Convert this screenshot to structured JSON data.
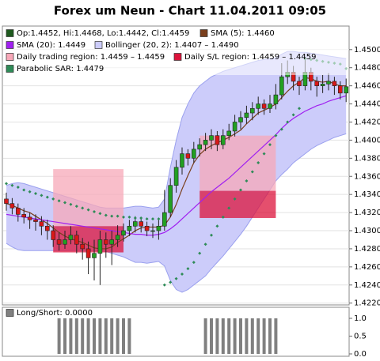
{
  "chart_data": [
    {
      "type": "candlestick",
      "title": "Forex um Neun - Chart 11.04.2011 09:05",
      "ylim": [
        1.4218,
        1.4526
      ],
      "yticks": [
        {
          "value": 1.422,
          "label": "1.4220"
        },
        {
          "value": 1.424,
          "label": "1.4240"
        },
        {
          "value": 1.426,
          "label": "1.4260"
        },
        {
          "value": 1.428,
          "label": "1.4280"
        },
        {
          "value": 1.43,
          "label": "1.4300"
        },
        {
          "value": 1.432,
          "label": "1.4320"
        },
        {
          "value": 1.434,
          "label": "1.4340"
        },
        {
          "value": 1.436,
          "label": "1.4360"
        },
        {
          "value": 1.438,
          "label": "1.4380"
        },
        {
          "value": 1.44,
          "label": "1.4400"
        },
        {
          "value": 1.442,
          "label": "1.4420"
        },
        {
          "value": 1.444,
          "label": "1.4440"
        },
        {
          "value": 1.446,
          "label": "1.4460"
        },
        {
          "value": 1.448,
          "label": "1.4480"
        },
        {
          "value": 1.45,
          "label": "1.4500"
        }
      ],
      "grid": true,
      "series": [
        {
          "name": "Op:1.4452, Hi:1.4468, Lo:1.4442, Cl:1.4459",
          "type": "candlestick",
          "color": "#1e5a1e",
          "up_color": "#22a022",
          "down_color": "#d81818",
          "open": [
            1.4335,
            1.433,
            1.4325,
            1.4318,
            1.4315,
            1.4312,
            1.431,
            1.4305,
            1.43,
            1.429,
            1.4285,
            1.429,
            1.4295,
            1.4285,
            1.428,
            1.427,
            1.4275,
            1.429,
            1.4285,
            1.429,
            1.4295,
            1.43,
            1.4305,
            1.431,
            1.4305,
            1.43,
            1.43,
            1.4305,
            1.432,
            1.435,
            1.437,
            1.4385,
            1.438,
            1.439,
            1.4395,
            1.44,
            1.4405,
            1.4395,
            1.4405,
            1.441,
            1.442,
            1.4425,
            1.443,
            1.4435,
            1.444,
            1.4435,
            1.444,
            1.445,
            1.447,
            1.4475,
            1.4465,
            1.446,
            1.4475,
            1.4465,
            1.446,
            1.4462,
            1.4465,
            1.446,
            1.4452
          ],
          "high": [
            1.4342,
            1.4336,
            1.433,
            1.4325,
            1.432,
            1.4318,
            1.4316,
            1.4312,
            1.4306,
            1.4298,
            1.43,
            1.4305,
            1.43,
            1.4292,
            1.4288,
            1.429,
            1.43,
            1.4298,
            1.43,
            1.4306,
            1.4308,
            1.4312,
            1.4316,
            1.4314,
            1.431,
            1.4308,
            1.4312,
            1.4345,
            1.4358,
            1.4378,
            1.4392,
            1.439,
            1.4398,
            1.4402,
            1.4408,
            1.4412,
            1.441,
            1.4412,
            1.4418,
            1.4428,
            1.4432,
            1.4438,
            1.4442,
            1.4448,
            1.4445,
            1.445,
            1.4462,
            1.4485,
            1.4488,
            1.4482,
            1.447,
            1.449,
            1.448,
            1.447,
            1.4472,
            1.4474,
            1.447,
            1.4465,
            1.4468
          ],
          "low": [
            1.4322,
            1.4318,
            1.431,
            1.4308,
            1.4302,
            1.43,
            1.4295,
            1.429,
            1.4282,
            1.4278,
            1.428,
            1.4285,
            1.4275,
            1.4268,
            1.4252,
            1.4245,
            1.424,
            1.427,
            1.4262,
            1.4282,
            1.4288,
            1.4294,
            1.4298,
            1.4298,
            1.4294,
            1.4292,
            1.429,
            1.43,
            1.4315,
            1.4342,
            1.4362,
            1.4372,
            1.4375,
            1.4382,
            1.4388,
            1.439,
            1.4388,
            1.439,
            1.44,
            1.4404,
            1.4412,
            1.4418,
            1.4422,
            1.4428,
            1.4428,
            1.443,
            1.4434,
            1.4445,
            1.4462,
            1.4455,
            1.445,
            1.4455,
            1.4455,
            1.4448,
            1.4452,
            1.4455,
            1.445,
            1.4445,
            1.4442
          ],
          "close": [
            1.433,
            1.4325,
            1.4318,
            1.4315,
            1.4312,
            1.431,
            1.4305,
            1.43,
            1.429,
            1.4285,
            1.429,
            1.4295,
            1.4285,
            1.428,
            1.427,
            1.4275,
            1.429,
            1.4285,
            1.429,
            1.4295,
            1.43,
            1.4305,
            1.431,
            1.4305,
            1.43,
            1.43,
            1.4305,
            1.432,
            1.435,
            1.437,
            1.4385,
            1.438,
            1.439,
            1.4395,
            1.44,
            1.4405,
            1.4395,
            1.4405,
            1.441,
            1.442,
            1.4425,
            1.443,
            1.4435,
            1.444,
            1.4435,
            1.444,
            1.445,
            1.447,
            1.4475,
            1.4465,
            1.446,
            1.4475,
            1.4465,
            1.446,
            1.4462,
            1.4465,
            1.446,
            1.4452,
            1.4459
          ]
        },
        {
          "name": "SMA (5): 1.4460",
          "type": "line",
          "color": "#7a3f1d",
          "values": [
            1.433,
            1.4328,
            1.4325,
            1.4322,
            1.432,
            1.4316,
            1.4312,
            1.4308,
            1.4303,
            1.4298,
            1.4294,
            1.4291,
            1.4289,
            1.4287,
            1.4284,
            1.4281,
            1.428,
            1.428,
            1.4282,
            1.4287,
            1.4291,
            1.4295,
            1.43,
            1.4303,
            1.4304,
            1.4304,
            1.4304,
            1.4306,
            1.4315,
            1.4329,
            1.4346,
            1.4361,
            1.4375,
            1.4384,
            1.439,
            1.4394,
            1.4397,
            1.44,
            1.4403,
            1.4407,
            1.4411,
            1.4418,
            1.4424,
            1.443,
            1.4433,
            1.4436,
            1.444,
            1.4447,
            1.4454,
            1.446,
            1.4464,
            1.4469,
            1.4468,
            1.4465,
            1.4464,
            1.4465,
            1.4462,
            1.446,
            1.446
          ]
        },
        {
          "name": "SMA (20): 1.4449",
          "type": "line",
          "color": "#a020f0",
          "values": [
            1.4318,
            1.4317,
            1.4316,
            1.4315,
            1.4314,
            1.4313,
            1.4312,
            1.4311,
            1.431,
            1.4309,
            1.4308,
            1.4307,
            1.4306,
            1.4305,
            1.4304,
            1.4303,
            1.4302,
            1.4301,
            1.43,
            1.4299,
            1.4298,
            1.4297,
            1.4296,
            1.4296,
            1.4295,
            1.4295,
            1.4296,
            1.4298,
            1.4302,
            1.4307,
            1.4313,
            1.4319,
            1.4325,
            1.4331,
            1.4337,
            1.4343,
            1.4348,
            1.4353,
            1.4358,
            1.4364,
            1.437,
            1.4376,
            1.4382,
            1.4388,
            1.4394,
            1.44,
            1.4406,
            1.4413,
            1.4419,
            1.4424,
            1.4428,
            1.4432,
            1.4435,
            1.4438,
            1.444,
            1.4443,
            1.4445,
            1.4447,
            1.4449
          ]
        },
        {
          "name": "Bollinger (20, 2): 1.4407 – 1.4490",
          "type": "band",
          "color": "#9aa0ee",
          "fill": "#ccccfa",
          "upper": [
            1.435,
            1.4352,
            1.4353,
            1.4352,
            1.435,
            1.4348,
            1.4346,
            1.4344,
            1.4342,
            1.434,
            1.4338,
            1.4336,
            1.4334,
            1.4332,
            1.433,
            1.4328,
            1.4326,
            1.4325,
            1.4325,
            1.4325,
            1.4325,
            1.4326,
            1.4327,
            1.4327,
            1.4326,
            1.4325,
            1.4326,
            1.4335,
            1.437,
            1.44,
            1.4425,
            1.444,
            1.4452,
            1.446,
            1.4465,
            1.447,
            1.4473,
            1.4476,
            1.4478,
            1.448,
            1.4482,
            1.4484,
            1.4486,
            1.4488,
            1.4489,
            1.449,
            1.4491,
            1.4495,
            1.4498,
            1.4498,
            1.4497,
            1.4497,
            1.4496,
            1.4495,
            1.4494,
            1.4493,
            1.4492,
            1.4491,
            1.449
          ],
          "lower": [
            1.4286,
            1.4282,
            1.4279,
            1.4278,
            1.4278,
            1.4278,
            1.4278,
            1.4278,
            1.4278,
            1.4278,
            1.4278,
            1.4278,
            1.4278,
            1.4278,
            1.4278,
            1.4278,
            1.4278,
            1.4277,
            1.4275,
            1.4273,
            1.4271,
            1.4268,
            1.4265,
            1.4265,
            1.4264,
            1.4265,
            1.4266,
            1.4261,
            1.4245,
            1.4235,
            1.4232,
            1.4235,
            1.424,
            1.4245,
            1.425,
            1.4258,
            1.4265,
            1.4272,
            1.428,
            1.4288,
            1.4296,
            1.4305,
            1.4315,
            1.4325,
            1.4335,
            1.4345,
            1.4355,
            1.4362,
            1.4368,
            1.4375,
            1.438,
            1.4385,
            1.439,
            1.4394,
            1.4397,
            1.44,
            1.4403,
            1.4405,
            1.4407
          ]
        },
        {
          "name": "Daily trading region: 1.4459 – 1.4459",
          "type": "region",
          "color": "#f7a8b8",
          "regions": [
            {
              "from": 8,
              "to": 20,
              "low": 1.4305,
              "high": 1.4368
            },
            {
              "from": 33,
              "to": 46,
              "low": 1.4344,
              "high": 1.4405
            }
          ]
        },
        {
          "name": "Daily S/L region: 1.4459 – 1.4459",
          "type": "region",
          "color": "#dc143c",
          "regions": [
            {
              "from": 8,
              "to": 20,
              "low": 1.4276,
              "high": 1.4305
            },
            {
              "from": 33,
              "to": 46,
              "low": 1.4314,
              "high": 1.4344
            }
          ]
        },
        {
          "name": "Parabolic SAR: 1.4479",
          "type": "dots",
          "color": "#2e8b57",
          "values": [
            1.4352,
            1.435,
            1.4348,
            1.4345,
            1.4343,
            1.4341,
            1.4339,
            1.4337,
            1.4335,
            1.4333,
            1.4331,
            1.4329,
            1.4327,
            1.4325,
            1.4323,
            1.4321,
            1.4319,
            1.4317,
            1.4316,
            1.4316,
            1.4315,
            1.4315,
            1.4314,
            1.4314,
            1.4313,
            1.4313,
            1.4313,
            1.424,
            1.4243,
            1.4247,
            1.4252,
            1.4258,
            1.4265,
            1.4275,
            1.4285,
            1.4295,
            1.4305,
            1.4315,
            1.4325,
            1.4335,
            1.4345,
            1.4355,
            1.4365,
            1.4375,
            1.4385,
            1.4395,
            1.4405,
            1.4412,
            1.442,
            1.4428,
            1.4435,
            1.449,
            1.4489,
            1.4488,
            1.4487,
            1.4486,
            1.4485,
            1.4484,
            1.4479
          ]
        }
      ]
    },
    {
      "type": "bar",
      "ylim": [
        0,
        1.1
      ],
      "yticks": [
        {
          "value": 0,
          "label": "0.0"
        },
        {
          "value": 0.5,
          "label": "0.5"
        },
        {
          "value": 1,
          "label": "1.0"
        }
      ],
      "series": [
        {
          "name": "Long/Short: 0.0000",
          "color": "#808080",
          "values": [
            0,
            0,
            0,
            0,
            0,
            0,
            0,
            0,
            0,
            1,
            1,
            1,
            1,
            1,
            1,
            1,
            1,
            1,
            1,
            1,
            1,
            1,
            0,
            0,
            0,
            0,
            0,
            0,
            0,
            0,
            0,
            0,
            0,
            0,
            1,
            1,
            1,
            1,
            1,
            1,
            1,
            1,
            1,
            1,
            1,
            1,
            1,
            0,
            0,
            0,
            0,
            0,
            0,
            0,
            0,
            0,
            0,
            0,
            0
          ]
        }
      ]
    }
  ]
}
